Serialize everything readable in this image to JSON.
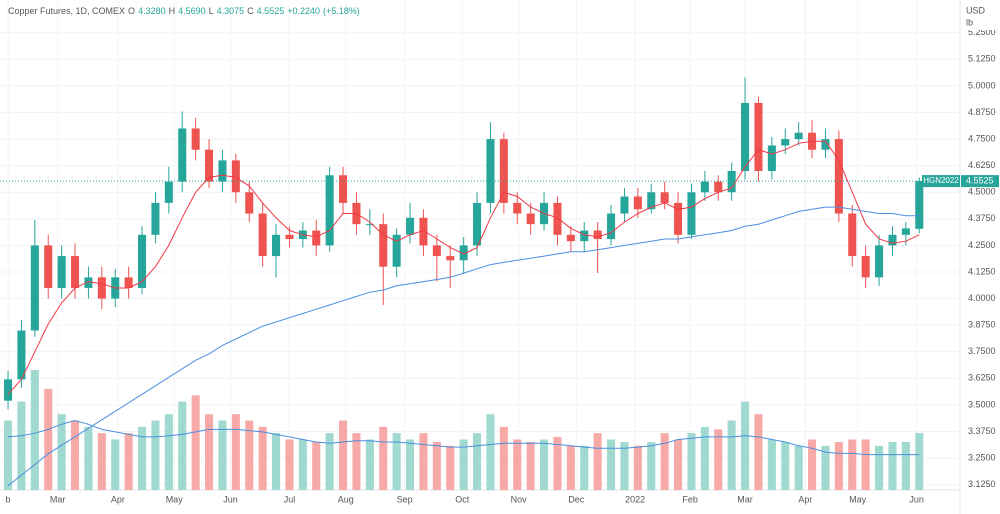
{
  "chart_data": {
    "type": "candlestick",
    "header": {
      "title": "Copper Futures, 1D, COMEX",
      "fields": [
        {
          "key": "O",
          "value": 4.328,
          "label": "4.3280"
        },
        {
          "key": "H",
          "value": 4.569,
          "label": "4.5690"
        },
        {
          "key": "L",
          "value": 4.3075,
          "label": "4.3075"
        },
        {
          "key": "C",
          "value": 4.5525,
          "label": "4.5525"
        }
      ],
      "change": {
        "value": 0.224,
        "label": "+0.2240"
      },
      "change_pct": {
        "value": 5.18,
        "label": "(+5.18%)"
      }
    },
    "currency": "USD",
    "unit": "lb",
    "last_price": {
      "symbol": "HGN2022",
      "value": 4.5525,
      "label": "4.5525"
    },
    "up_color": "#26a69a",
    "down_color": "#ef5350",
    "up_volume_color": "#9fd9cf",
    "down_volume_color": "#f7a9a7",
    "open": [
      3.52,
      3.62,
      3.85,
      4.25,
      4.05,
      4.2,
      4.05,
      4.1,
      4.0,
      4.1,
      4.05,
      4.3,
      4.45,
      4.55,
      4.8,
      4.7,
      4.55,
      4.65,
      4.5,
      4.4,
      4.2,
      4.3,
      4.28,
      4.32,
      4.25,
      4.58,
      4.45,
      4.35,
      4.35,
      4.15,
      4.3,
      4.38,
      4.25,
      4.2,
      4.18,
      4.25,
      4.45,
      4.75,
      4.45,
      4.4,
      4.35,
      4.45,
      4.3,
      4.27,
      4.32,
      4.28,
      4.4,
      4.48,
      4.42,
      4.5,
      4.45,
      4.3,
      4.5,
      4.55,
      4.5,
      4.6,
      4.92,
      4.6,
      4.72,
      4.75,
      4.78,
      4.7,
      4.75,
      4.4,
      4.2,
      4.1,
      4.25,
      4.3,
      4.328
    ],
    "high": [
      3.66,
      3.9,
      4.37,
      4.3,
      4.25,
      4.26,
      4.15,
      4.15,
      4.14,
      4.15,
      4.34,
      4.5,
      4.62,
      4.88,
      4.85,
      4.75,
      4.7,
      4.68,
      4.55,
      4.45,
      4.35,
      4.34,
      4.36,
      4.37,
      4.62,
      4.62,
      4.5,
      4.42,
      4.4,
      4.33,
      4.45,
      4.42,
      4.3,
      4.25,
      4.29,
      4.5,
      4.83,
      4.78,
      4.5,
      4.45,
      4.5,
      4.48,
      4.34,
      4.36,
      4.36,
      4.44,
      4.52,
      4.52,
      4.54,
      4.55,
      4.5,
      4.54,
      4.6,
      4.58,
      4.64,
      5.04,
      4.95,
      4.76,
      4.8,
      4.83,
      4.84,
      4.8,
      4.79,
      4.44,
      4.25,
      4.3,
      4.34,
      4.36,
      4.569
    ],
    "low": [
      3.48,
      3.58,
      3.82,
      4.0,
      4.0,
      4.0,
      4.0,
      3.95,
      3.96,
      4.0,
      4.02,
      4.26,
      4.4,
      4.5,
      4.65,
      4.52,
      4.5,
      4.45,
      4.36,
      4.15,
      4.1,
      4.24,
      4.24,
      4.2,
      4.22,
      4.4,
      4.3,
      4.3,
      3.97,
      4.1,
      4.26,
      4.2,
      4.08,
      4.05,
      4.12,
      4.2,
      4.4,
      4.4,
      4.35,
      4.3,
      4.32,
      4.25,
      4.22,
      4.22,
      4.12,
      4.25,
      4.36,
      4.38,
      4.4,
      4.42,
      4.26,
      4.28,
      4.46,
      4.46,
      4.46,
      4.56,
      4.55,
      4.56,
      4.68,
      4.72,
      4.66,
      4.66,
      4.36,
      4.15,
      4.05,
      4.06,
      4.2,
      4.25,
      4.3075
    ],
    "close": [
      3.62,
      3.85,
      4.25,
      4.05,
      4.2,
      4.05,
      4.1,
      4.0,
      4.1,
      4.05,
      4.3,
      4.45,
      4.55,
      4.8,
      4.7,
      4.55,
      4.65,
      4.5,
      4.4,
      4.2,
      4.3,
      4.28,
      4.32,
      4.25,
      4.58,
      4.45,
      4.35,
      4.35,
      4.15,
      4.3,
      4.38,
      4.25,
      4.2,
      4.18,
      4.25,
      4.45,
      4.75,
      4.45,
      4.4,
      4.35,
      4.45,
      4.3,
      4.27,
      4.32,
      4.28,
      4.4,
      4.48,
      4.42,
      4.5,
      4.45,
      4.3,
      4.5,
      4.55,
      4.5,
      4.6,
      4.92,
      4.6,
      4.72,
      4.75,
      4.78,
      4.7,
      4.75,
      4.4,
      4.2,
      4.1,
      4.25,
      4.3,
      4.33,
      4.5525
    ],
    "series": [
      {
        "color": "#f23645",
        "values": [
          3.55,
          3.62,
          3.75,
          3.88,
          3.98,
          4.05,
          4.08,
          4.07,
          4.05,
          4.05,
          4.08,
          4.15,
          4.25,
          4.38,
          4.5,
          4.57,
          4.58,
          4.57,
          4.53,
          4.45,
          4.38,
          4.32,
          4.3,
          4.29,
          4.32,
          4.4,
          4.4,
          4.36,
          4.3,
          4.27,
          4.3,
          4.32,
          4.28,
          4.24,
          4.21,
          4.24,
          4.38,
          4.5,
          4.48,
          4.43,
          4.4,
          4.38,
          4.33,
          4.3,
          4.29,
          4.31,
          4.36,
          4.4,
          4.43,
          4.45,
          4.42,
          4.43,
          4.47,
          4.5,
          4.52,
          4.62,
          4.7,
          4.68,
          4.7,
          4.73,
          4.74,
          4.74,
          4.65,
          4.5,
          4.35,
          4.28,
          4.26,
          4.27,
          4.3
        ]
      },
      {
        "color": "#4a8fe0",
        "values": [
          3.12,
          3.17,
          3.22,
          3.27,
          3.31,
          3.35,
          3.39,
          3.43,
          3.47,
          3.51,
          3.55,
          3.59,
          3.63,
          3.67,
          3.71,
          3.74,
          3.78,
          3.81,
          3.84,
          3.87,
          3.89,
          3.91,
          3.93,
          3.95,
          3.97,
          3.99,
          4.01,
          4.03,
          4.04,
          4.06,
          4.07,
          4.08,
          4.09,
          4.1,
          4.12,
          4.14,
          4.16,
          4.17,
          4.18,
          4.19,
          4.2,
          4.21,
          4.22,
          4.22,
          4.23,
          4.24,
          4.25,
          4.26,
          4.27,
          4.28,
          4.28,
          4.29,
          4.3,
          4.31,
          4.32,
          4.34,
          4.35,
          4.37,
          4.39,
          4.41,
          4.42,
          4.43,
          4.43,
          4.42,
          4.41,
          4.4,
          4.4,
          4.39,
          4.39
        ]
      }
    ],
    "volume": [
      55,
      70,
      95,
      80,
      60,
      55,
      50,
      45,
      40,
      45,
      50,
      55,
      60,
      70,
      75,
      60,
      55,
      60,
      55,
      50,
      45,
      40,
      40,
      38,
      45,
      55,
      45,
      40,
      50,
      45,
      40,
      45,
      38,
      35,
      40,
      45,
      60,
      50,
      40,
      38,
      40,
      42,
      35,
      35,
      45,
      40,
      38,
      35,
      38,
      45,
      40,
      45,
      50,
      48,
      55,
      70,
      60,
      40,
      38,
      35,
      40,
      35,
      38,
      40,
      40,
      35,
      38,
      38,
      45
    ],
    "volume_ma": {
      "color": "#4a8fe0",
      "values": [
        42,
        43,
        45,
        48,
        52,
        55,
        52,
        48,
        46,
        44,
        42,
        42,
        43,
        44,
        46,
        48,
        48,
        48,
        47,
        46,
        44,
        42,
        40,
        38,
        37,
        38,
        39,
        39,
        38,
        38,
        37,
        36,
        35,
        34,
        34,
        35,
        36,
        37,
        37,
        37,
        37,
        36,
        35,
        34,
        33,
        33,
        33,
        34,
        35,
        37,
        40,
        41,
        42,
        42,
        42,
        43,
        42,
        40,
        38,
        35,
        33,
        30,
        29,
        29,
        28,
        28,
        28,
        28,
        28
      ]
    },
    "xlim": [
      -0.6,
      71.04
    ],
    "xticks": [
      {
        "value": 0,
        "label": "b"
      },
      {
        "value": 3.7,
        "label": "Mar"
      },
      {
        "value": 8.2,
        "label": "Apr"
      },
      {
        "value": 12.4,
        "label": "May"
      },
      {
        "value": 16.6,
        "label": "Jun"
      },
      {
        "value": 21.0,
        "label": "Jul"
      },
      {
        "value": 25.2,
        "label": "Aug"
      },
      {
        "value": 29.6,
        "label": "Sep"
      },
      {
        "value": 33.9,
        "label": "Oct"
      },
      {
        "value": 38.1,
        "label": "Nov"
      },
      {
        "value": 42.4,
        "label": "Dec"
      },
      {
        "value": 46.8,
        "label": "2022"
      },
      {
        "value": 50.9,
        "label": "Feb"
      },
      {
        "value": 55.0,
        "label": "Mar"
      },
      {
        "value": 59.5,
        "label": "Apr"
      },
      {
        "value": 63.4,
        "label": "May"
      },
      {
        "value": 67.8,
        "label": "Jun"
      }
    ],
    "ylim": [
      3.1,
      5.31
    ],
    "yticks": [
      {
        "value": 3.125,
        "label": "3.1250"
      },
      {
        "value": 3.25,
        "label": "3.2500"
      },
      {
        "value": 3.375,
        "label": "3.3750"
      },
      {
        "value": 3.5,
        "label": "3.5000"
      },
      {
        "value": 3.625,
        "label": "3.6250"
      },
      {
        "value": 3.75,
        "label": "3.7500"
      },
      {
        "value": 3.875,
        "label": "3.8750"
      },
      {
        "value": 4.0,
        "label": "4.0000"
      },
      {
        "value": 4.125,
        "label": "4.1250"
      },
      {
        "value": 4.25,
        "label": "4.2500"
      },
      {
        "value": 4.375,
        "label": "4.3750"
      },
      {
        "value": 4.5,
        "label": "4.5000"
      },
      {
        "value": 4.625,
        "label": "4.6250"
      },
      {
        "value": 4.75,
        "label": "4.7500"
      },
      {
        "value": 4.875,
        "label": "4.8750"
      },
      {
        "value": 5.0,
        "label": "5.0000"
      },
      {
        "value": 5.125,
        "label": "5.1250"
      },
      {
        "value": 5.25,
        "label": "5.2500"
      }
    ],
    "grid": true
  }
}
